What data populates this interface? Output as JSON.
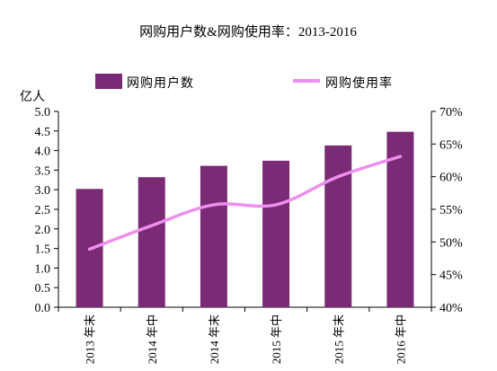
{
  "chart_data": {
    "type": "bar",
    "title": "网购用户数&网购使用率：2013-2016",
    "categories": [
      "2013年末",
      "2014年中",
      "2014年末",
      "2015年中",
      "2015年末",
      "2016年中"
    ],
    "category_years": [
      "2013",
      "2014",
      "2014",
      "2015",
      "2015",
      "2016"
    ],
    "category_halves": [
      "年末",
      "年中",
      "年末",
      "年中",
      "年末",
      "年中"
    ],
    "y_unit_label": "亿人",
    "ylim": [
      0,
      5
    ],
    "y_ticks": [
      "0.0",
      "0.5",
      "1.0",
      "1.5",
      "2.0",
      "2.5",
      "3.0",
      "3.5",
      "4.0",
      "4.5",
      "5.0"
    ],
    "y2lim": [
      40,
      70
    ],
    "y2_ticks": [
      "40%",
      "45%",
      "50%",
      "55%",
      "60%",
      "65%",
      "70%"
    ],
    "grid": false,
    "legend_placement": "top",
    "series": [
      {
        "name": "网购用户数",
        "type": "bar",
        "axis": "left",
        "values": [
          3.02,
          3.32,
          3.61,
          3.74,
          4.13,
          4.48
        ],
        "color": "#7b2a76"
      },
      {
        "name": "网购使用率",
        "type": "line",
        "axis": "right",
        "values": [
          48.9,
          52.5,
          55.7,
          55.7,
          60.0,
          63.1
        ],
        "color": "#ee8fee"
      }
    ]
  }
}
